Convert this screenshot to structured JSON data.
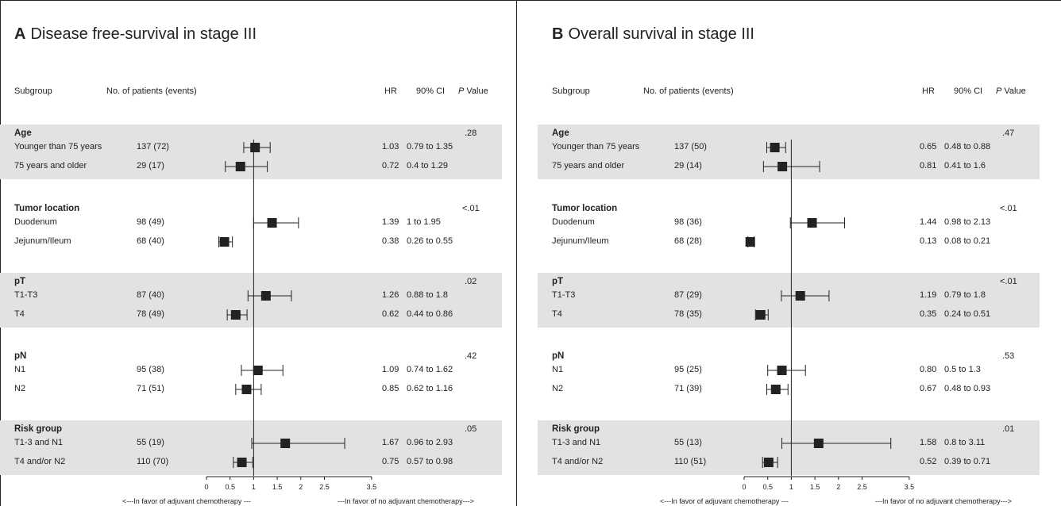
{
  "headers": {
    "subgroup": "Subgroup",
    "patients": "No. of patients (events)",
    "hr": "HR",
    "ci": "90% CI",
    "p": "P Value"
  },
  "axis": {
    "ticks": [
      "0",
      "0.5",
      "1",
      "1.5",
      "2",
      "2.5",
      "3.5"
    ],
    "tick_values": [
      0,
      0.5,
      1,
      1.5,
      2,
      2.5,
      3.5
    ],
    "reference_line": 1,
    "favor_left": "<---In favor of adjuvant chemotherapy ---",
    "favor_right": "---In favor of no adjuvant chemotherapy--->"
  },
  "chart_data": [
    {
      "type": "forest",
      "letter": "A",
      "title": "Disease free-survival in stage III",
      "xlim": [
        0,
        3.5
      ],
      "groups": [
        {
          "name": "Age",
          "p": ".28",
          "shaded": true,
          "rows": [
            {
              "label": "Younger than 75 years",
              "n": "137 (72)",
              "hr": 1.03,
              "lo": 0.79,
              "hi": 1.35,
              "hr_text": "1.03",
              "ci_text": "0.79 to 1.35"
            },
            {
              "label": "75 years and older",
              "n": "29 (17)",
              "hr": 0.72,
              "lo": 0.4,
              "hi": 1.29,
              "hr_text": "0.72",
              "ci_text": "0.4 to 1.29"
            }
          ]
        },
        {
          "name": "Tumor location",
          "p": "<.01",
          "shaded": false,
          "rows": [
            {
              "label": "Duodenum",
              "n": "98 (49)",
              "hr": 1.39,
              "lo": 1.0,
              "hi": 1.95,
              "hr_text": "1.39",
              "ci_text": "1 to 1.95"
            },
            {
              "label": "Jejunum/Ileum",
              "n": "68 (40)",
              "hr": 0.38,
              "lo": 0.26,
              "hi": 0.55,
              "hr_text": "0.38",
              "ci_text": "0.26 to 0.55"
            }
          ]
        },
        {
          "name": "pT",
          "p": ".02",
          "shaded": true,
          "rows": [
            {
              "label": "T1-T3",
              "n": "87 (40)",
              "hr": 1.26,
              "lo": 0.88,
              "hi": 1.8,
              "hr_text": "1.26",
              "ci_text": "0.88 to 1.8"
            },
            {
              "label": "T4",
              "n": "78 (49)",
              "hr": 0.62,
              "lo": 0.44,
              "hi": 0.86,
              "hr_text": "0.62",
              "ci_text": "0.44 to 0.86"
            }
          ]
        },
        {
          "name": "pN",
          "p": ".42",
          "shaded": false,
          "rows": [
            {
              "label": "N1",
              "n": "95 (38)",
              "hr": 1.09,
              "lo": 0.74,
              "hi": 1.62,
              "hr_text": "1.09",
              "ci_text": "0.74 to 1.62"
            },
            {
              "label": "N2",
              "n": "71 (51)",
              "hr": 0.85,
              "lo": 0.62,
              "hi": 1.16,
              "hr_text": "0.85",
              "ci_text": "0.62 to 1.16"
            }
          ]
        },
        {
          "name": "Risk group",
          "p": ".05",
          "shaded": true,
          "rows": [
            {
              "label": "T1-3 and N1",
              "n": "55 (19)",
              "hr": 1.67,
              "lo": 0.96,
              "hi": 2.93,
              "hr_text": "1.67",
              "ci_text": "0.96 to 2.93"
            },
            {
              "label": "T4 and/or N2",
              "n": "110 (70)",
              "hr": 0.75,
              "lo": 0.57,
              "hi": 0.98,
              "hr_text": "0.75",
              "ci_text": "0.57 to 0.98"
            }
          ]
        }
      ]
    },
    {
      "type": "forest",
      "letter": "B",
      "title": "Overall survival in stage III",
      "xlim": [
        0,
        3.5
      ],
      "groups": [
        {
          "name": "Age",
          "p": ".47",
          "shaded": true,
          "rows": [
            {
              "label": "Younger than 75 years",
              "n": "137 (50)",
              "hr": 0.65,
              "lo": 0.48,
              "hi": 0.88,
              "hr_text": "0.65",
              "ci_text": "0.48 to 0.88"
            },
            {
              "label": "75 years and older",
              "n": "29 (14)",
              "hr": 0.81,
              "lo": 0.41,
              "hi": 1.6,
              "hr_text": "0.81",
              "ci_text": "0.41 to 1.6"
            }
          ]
        },
        {
          "name": "Tumor location",
          "p": "<.01",
          "shaded": false,
          "rows": [
            {
              "label": "Duodenum",
              "n": "98 (36)",
              "hr": 1.44,
              "lo": 0.98,
              "hi": 2.13,
              "hr_text": "1.44",
              "ci_text": "0.98 to 2.13"
            },
            {
              "label": "Jejunum/Ileum",
              "n": "68 (28)",
              "hr": 0.13,
              "lo": 0.08,
              "hi": 0.21,
              "hr_text": "0.13",
              "ci_text": "0.08 to 0.21"
            }
          ]
        },
        {
          "name": "pT",
          "p": "<.01",
          "shaded": true,
          "rows": [
            {
              "label": "T1-T3",
              "n": "87 (29)",
              "hr": 1.19,
              "lo": 0.79,
              "hi": 1.8,
              "hr_text": "1.19",
              "ci_text": "0.79 to 1.8"
            },
            {
              "label": "T4",
              "n": "78 (35)",
              "hr": 0.35,
              "lo": 0.24,
              "hi": 0.51,
              "hr_text": "0.35",
              "ci_text": "0.24 to 0.51"
            }
          ]
        },
        {
          "name": "pN",
          "p": ".53",
          "shaded": false,
          "rows": [
            {
              "label": "N1",
              "n": "95 (25)",
              "hr": 0.8,
              "lo": 0.5,
              "hi": 1.3,
              "hr_text": "0.80",
              "ci_text": "0.5 to 1.3"
            },
            {
              "label": "N2",
              "n": "71 (39)",
              "hr": 0.67,
              "lo": 0.48,
              "hi": 0.93,
              "hr_text": "0.67",
              "ci_text": "0.48 to 0.93"
            }
          ]
        },
        {
          "name": "Risk group",
          "p": ".01",
          "shaded": true,
          "rows": [
            {
              "label": "T1-3 and N1",
              "n": "55 (13)",
              "hr": 1.58,
              "lo": 0.8,
              "hi": 3.11,
              "hr_text": "1.58",
              "ci_text": "0.8 to 3.11"
            },
            {
              "label": "T4 and/or N2",
              "n": "110 (51)",
              "hr": 0.52,
              "lo": 0.39,
              "hi": 0.71,
              "hr_text": "0.52",
              "ci_text": "0.39 to 0.71"
            }
          ]
        }
      ]
    }
  ]
}
